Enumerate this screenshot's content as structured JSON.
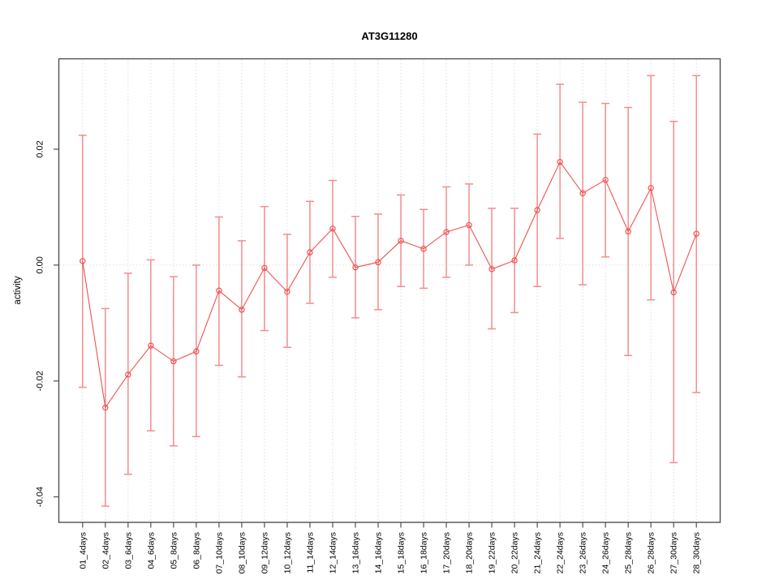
{
  "chart_data": {
    "type": "line",
    "title": "AT3G11280",
    "xlabel": "",
    "ylabel": "activity",
    "legend": "none",
    "categories": [
      "01_4days",
      "02_4days",
      "03_6days",
      "04_6days",
      "05_8days",
      "06_8days",
      "07_10days",
      "08_10days",
      "09_12days",
      "10_12days",
      "11_14days",
      "12_14days",
      "13_16days",
      "14_16days",
      "15_18days",
      "16_18days",
      "17_20days",
      "18_20days",
      "19_22days",
      "20_22days",
      "21_24days",
      "22_24days",
      "23_26days",
      "24_26days",
      "25_28days",
      "26_28days",
      "27_30days",
      "28_30days"
    ],
    "series": [
      {
        "name": "AT3G11280 activity",
        "marker": "open-circle",
        "values": [
          0.0007,
          -0.0246,
          -0.0189,
          -0.0139,
          -0.0166,
          -0.0149,
          -0.0044,
          -0.0077,
          -0.0005,
          -0.0046,
          0.0022,
          0.0063,
          -0.0004,
          0.0005,
          0.0042,
          0.0028,
          0.0057,
          0.0069,
          -0.0007,
          0.0008,
          0.0095,
          0.0178,
          0.0124,
          0.0147,
          0.0058,
          0.0133,
          -0.0047,
          0.0054
        ],
        "error_upper": [
          0.0224,
          -0.0075,
          -0.0014,
          0.0009,
          -0.002,
          0.0,
          0.0083,
          0.0042,
          0.0101,
          0.0053,
          0.011,
          0.0146,
          0.0084,
          0.0088,
          0.0121,
          0.0096,
          0.0135,
          0.014,
          0.0098,
          0.0098,
          0.0226,
          0.0312,
          0.0281,
          0.0279,
          0.0272,
          0.0327,
          0.0248,
          0.0327
        ],
        "error_lower": [
          -0.0211,
          -0.0416,
          -0.0361,
          -0.0286,
          -0.0312,
          -0.0296,
          -0.0173,
          -0.0193,
          -0.0113,
          -0.0142,
          -0.0066,
          -0.0021,
          -0.0091,
          -0.0077,
          -0.0037,
          -0.004,
          -0.0021,
          0.0,
          -0.011,
          -0.0082,
          -0.0037,
          0.0046,
          -0.0034,
          0.0014,
          -0.0156,
          -0.006,
          -0.0341,
          -0.022
        ]
      }
    ],
    "ylim": [
      -0.0444,
      0.0356
    ],
    "yticks": [
      {
        "value": -0.04,
        "label": "-0.04"
      },
      {
        "value": -0.02,
        "label": "-0.02"
      },
      {
        "value": 0.0,
        "label": "0.00"
      },
      {
        "value": 0.02,
        "label": "0.02"
      }
    ],
    "grid": {
      "vertical_gridlines": "dotted, one per category",
      "horizontal_zero_line": "dotted at y=0"
    },
    "colors": {
      "series_line": "#f15151",
      "error_bar": "#f28d8d",
      "grid": "#d8d8d8",
      "frame": "#4f4f4f",
      "text": "#000000",
      "background": "#ffffff"
    }
  }
}
